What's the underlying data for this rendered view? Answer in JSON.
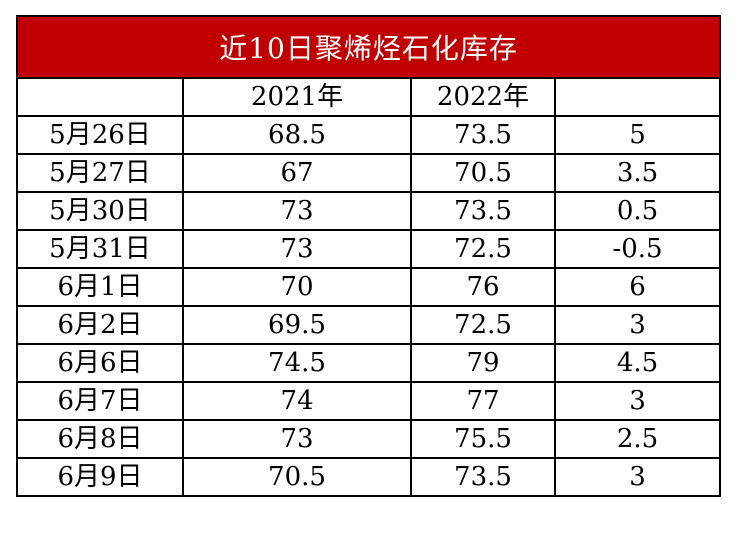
{
  "chart_data": {
    "type": "table",
    "title": "近10日聚烯烃石化库存",
    "columns": [
      "",
      "2021年",
      "2022年",
      ""
    ],
    "rows": [
      {
        "date": "5月26日",
        "y2021": "68.5",
        "y2022": "73.5",
        "diff": "5"
      },
      {
        "date": "5月27日",
        "y2021": "67",
        "y2022": "70.5",
        "diff": "3.5"
      },
      {
        "date": "5月30日",
        "y2021": "73",
        "y2022": "73.5",
        "diff": "0.5"
      },
      {
        "date": "5月31日",
        "y2021": "73",
        "y2022": "72.5",
        "diff": "-0.5"
      },
      {
        "date": "6月1日",
        "y2021": "70",
        "y2022": "76",
        "diff": "6"
      },
      {
        "date": "6月2日",
        "y2021": "69.5",
        "y2022": "72.5",
        "diff": "3"
      },
      {
        "date": "6月6日",
        "y2021": "74.5",
        "y2022": "79",
        "diff": "4.5"
      },
      {
        "date": "6月7日",
        "y2021": "74",
        "y2022": "77",
        "diff": "3"
      },
      {
        "date": "6月8日",
        "y2021": "73",
        "y2022": "75.5",
        "diff": "2.5"
      },
      {
        "date": "6月9日",
        "y2021": "70.5",
        "y2022": "73.5",
        "diff": "3"
      }
    ],
    "colors": {
      "title_background": "#c00000",
      "title_text": "#ffffff",
      "border": "#000000"
    }
  }
}
